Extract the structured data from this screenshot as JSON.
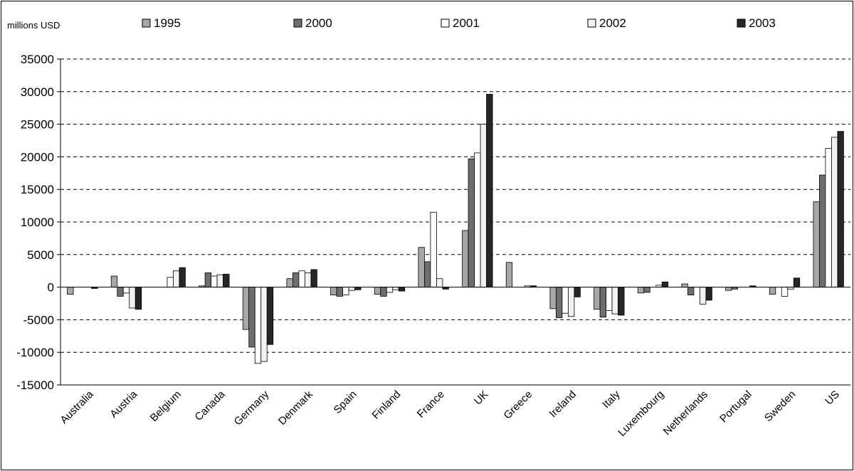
{
  "chart_data": {
    "type": "bar",
    "unit_label": "millions USD",
    "categories": [
      "Australia",
      "Austria",
      "Belgium",
      "Canada",
      "Germany",
      "Denmark",
      "Spain",
      "Finland",
      "France",
      "UK",
      "Greece",
      "Ireland",
      "Italy",
      "Luxembourg",
      "Netherlands",
      "Portugal",
      "Sweden",
      "US"
    ],
    "series": [
      {
        "name": "1995",
        "color": "#a6a6a6",
        "values": [
          -1100,
          1700,
          0,
          200,
          -6500,
          1300,
          -1200,
          -1100,
          6100,
          8700,
          3800,
          -3300,
          -3400,
          -900,
          500,
          -500,
          -1100,
          13100
        ]
      },
      {
        "name": "2000",
        "color": "#6e6e6e",
        "values": [
          0,
          -1400,
          0,
          2200,
          -9200,
          2200,
          -1400,
          -1400,
          3900,
          19700,
          0,
          -4700,
          -4600,
          -800,
          -1200,
          -300,
          0,
          17200
        ]
      },
      {
        "name": "2001",
        "color": "#ffffff",
        "values": [
          0,
          -900,
          1500,
          1700,
          -11700,
          2500,
          -1200,
          -800,
          11500,
          20600,
          0,
          -4000,
          -3600,
          0,
          0,
          0,
          -1400,
          21300
        ]
      },
      {
        "name": "2002",
        "color": "#f2f2f2",
        "values": [
          0,
          -3200,
          2500,
          1900,
          -11400,
          2200,
          -500,
          -400,
          1300,
          25000,
          200,
          -4500,
          -4100,
          300,
          -2600,
          0,
          -300,
          23000
        ]
      },
      {
        "name": "2003",
        "color": "#262626",
        "values": [
          -200,
          -3400,
          3000,
          2000,
          -8800,
          2700,
          -400,
          -600,
          -300,
          29600,
          200,
          -1500,
          -4300,
          800,
          -2000,
          200,
          1400,
          23900
        ]
      }
    ],
    "ylim": [
      -15000,
      35000
    ],
    "yticks": [
      -15000,
      -10000,
      -5000,
      0,
      5000,
      10000,
      15000,
      20000,
      25000,
      30000,
      35000
    ],
    "grid": "dashed horizontal",
    "legend_position": "top"
  }
}
